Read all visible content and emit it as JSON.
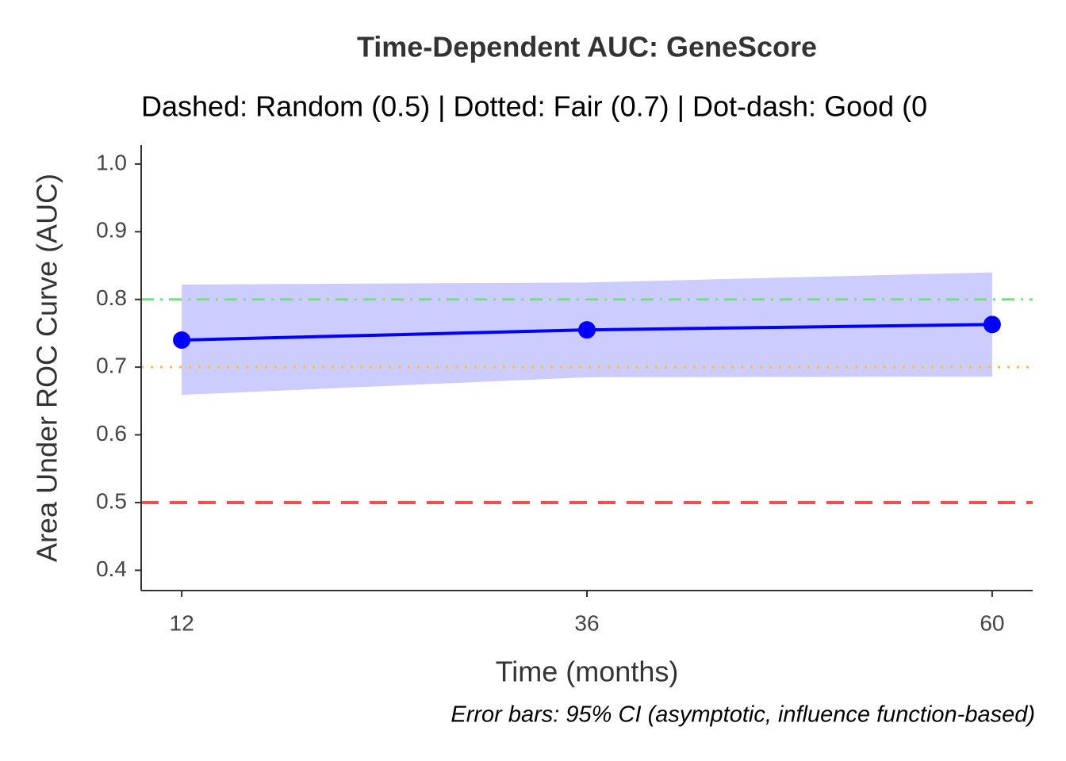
{
  "chart_data": {
    "type": "line",
    "title": "Time-Dependent AUC: GeneScore",
    "subtitle": "Dashed: Random (0.5) | Dotted: Fair (0.7) | Dot-dash: Good (0",
    "x_label": "Time (months)",
    "y_label": "Area Under ROC Curve (AUC)",
    "caption": "Error bars: 95% CI (asymptotic, influence function-based)",
    "x": [
      12,
      36,
      60
    ],
    "series": [
      {
        "color": "#0000ff",
        "band_color": "#ccccff",
        "values": [
          0.74,
          0.755,
          0.763
        ],
        "lower": [
          0.659,
          0.685,
          0.686
        ],
        "upper": [
          0.822,
          0.825,
          0.84
        ]
      }
    ],
    "reference_lines": [
      {
        "value": 0.5,
        "color": "#ff4d4d",
        "style": "dashed"
      },
      {
        "value": 0.7,
        "color": "#ffb84d",
        "style": "dotted"
      },
      {
        "value": 0.8,
        "color": "#7ddc8a",
        "style": "dotdash"
      }
    ],
    "xlim": [
      9.6,
      62.4
    ],
    "xticks": [
      12,
      36,
      60
    ],
    "ylim": [
      0.37,
      1.028
    ],
    "yticks": [
      0.4,
      0.5,
      0.6,
      0.7,
      0.8,
      0.9,
      {
        "value": 1.0,
        "label": "1.0"
      }
    ],
    "grid": false
  }
}
